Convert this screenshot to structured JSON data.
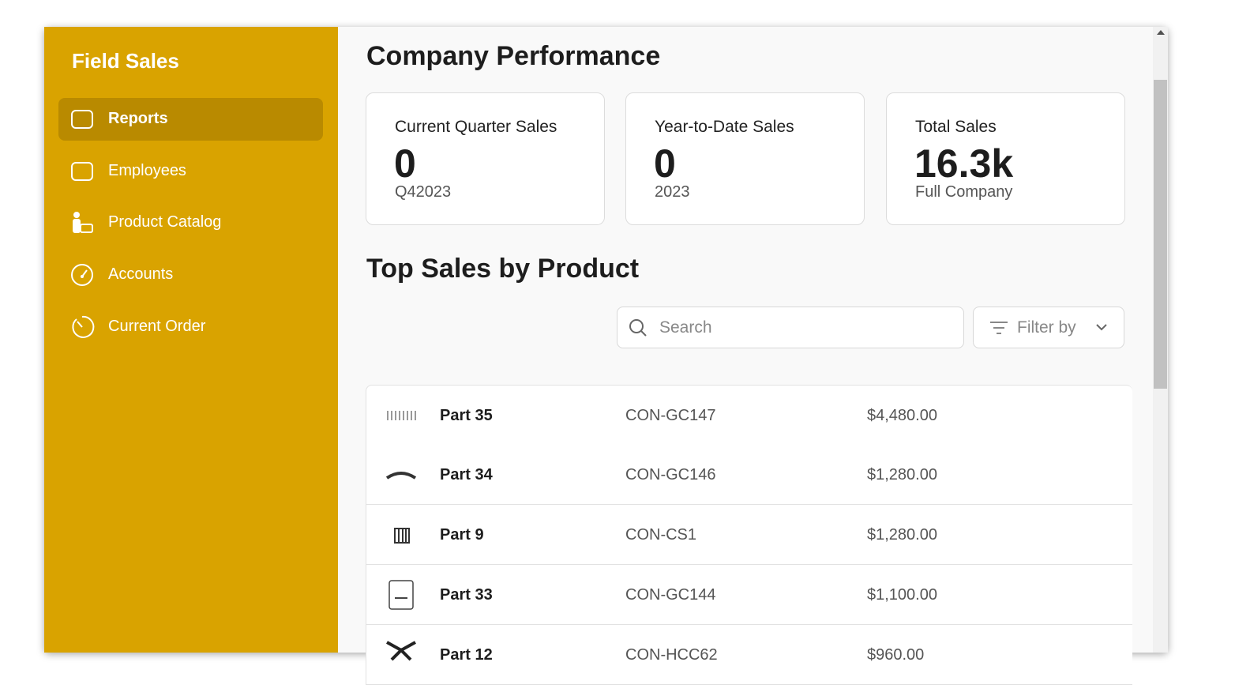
{
  "sidebar": {
    "title": "Field Sales",
    "nav": [
      "Reports",
      "Employees",
      "Product Catalog",
      "Accounts",
      "Current Order"
    ]
  },
  "main": {
    "title": "Company Performance",
    "cards": [
      {
        "label": "Current Quarter Sales",
        "value": "0",
        "sub": "Q42023"
      },
      {
        "label": "Year-to-Date Sales",
        "value": "0",
        "sub": "2023"
      },
      {
        "label": "Total Sales",
        "value": "16.3k",
        "sub": "Full Company"
      }
    ],
    "section_title": "Top Sales by Product",
    "search_placeholder": "Search",
    "filter_label": "Filter by",
    "table": {
      "rows": [
        [
          "Part 35",
          "CON-GC147",
          "$4,480.00"
        ],
        [
          "Part 34",
          "CON-GC146",
          "$1,280.00"
        ],
        [
          "Part 9",
          "CON-CS1",
          "$1,280.00"
        ],
        [
          "Part 33",
          "CON-GC144",
          "$1,100.00"
        ],
        [
          "Part 12",
          "CON-HCC62",
          "$960.00"
        ]
      ]
    }
  }
}
